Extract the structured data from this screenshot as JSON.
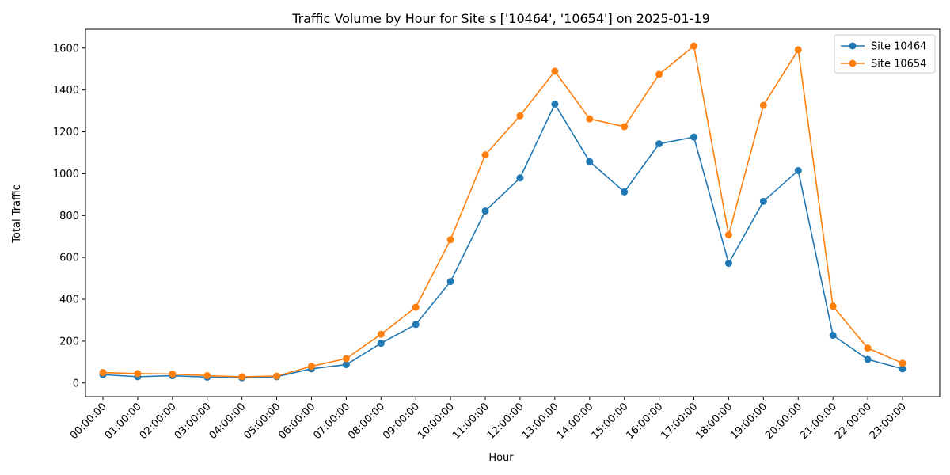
{
  "chart_data": {
    "type": "line",
    "title": "Traffic Volume by Hour for Site s ['10464', '10654'] on 2025-01-19",
    "xlabel": "Hour",
    "ylabel": "Total Traffic",
    "categories": [
      "00:00:00",
      "01:00:00",
      "02:00:00",
      "03:00:00",
      "04:00:00",
      "05:00:00",
      "06:00:00",
      "07:00:00",
      "08:00:00",
      "09:00:00",
      "10:00:00",
      "11:00:00",
      "12:00:00",
      "13:00:00",
      "14:00:00",
      "15:00:00",
      "16:00:00",
      "17:00:00",
      "18:00:00",
      "19:00:00",
      "20:00:00",
      "21:00:00",
      "22:00:00",
      "23:00:00"
    ],
    "ylim": [
      -65,
      1690
    ],
    "yticks": [
      0,
      200,
      400,
      600,
      800,
      1000,
      1200,
      1400,
      1600
    ],
    "grid": false,
    "legend_position": "top-right",
    "series": [
      {
        "name": "Site 10464",
        "color": "#1f77b4",
        "values": [
          40,
          30,
          35,
          28,
          25,
          30,
          68,
          88,
          190,
          280,
          485,
          822,
          980,
          1333,
          1058,
          913,
          1143,
          1175,
          572,
          868,
          1015,
          228,
          113,
          68
        ]
      },
      {
        "name": "Site 10654",
        "color": "#ff7f0e",
        "values": [
          50,
          45,
          43,
          35,
          30,
          33,
          80,
          117,
          233,
          362,
          685,
          1090,
          1277,
          1490,
          1262,
          1225,
          1475,
          1610,
          708,
          1327,
          1592,
          367,
          167,
          95
        ]
      }
    ]
  }
}
